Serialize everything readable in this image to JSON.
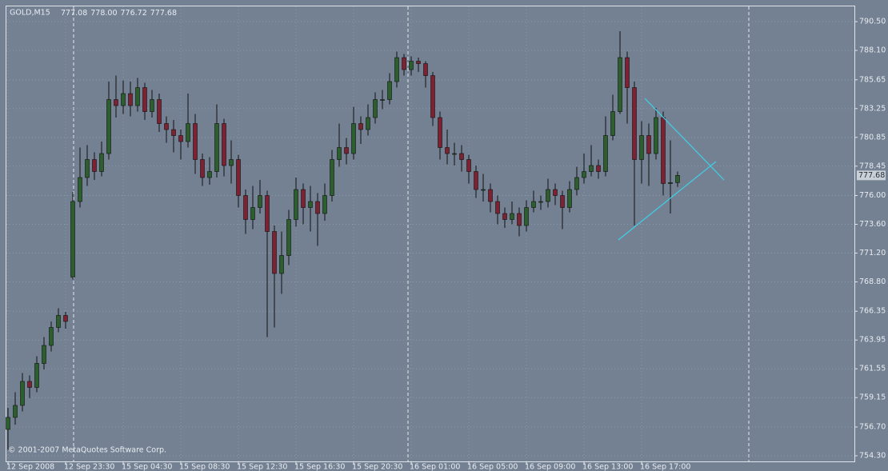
{
  "chart_data": {
    "type": "candlestick",
    "symbol": "GOLD,M15",
    "last_bar_labels": [
      "777.08",
      "778.00",
      "776.72",
      "777.68"
    ],
    "copyright": "© 2001-2007 MetaQuotes Software Corp.",
    "categories": [
      "12 Sep 2008",
      null,
      null,
      null,
      null,
      null,
      null,
      null,
      "12 Sep 23:30",
      null,
      null,
      null,
      null,
      null,
      null,
      null,
      "15 Sep 04:30",
      null,
      null,
      null,
      null,
      null,
      null,
      null,
      "15 Sep 08:30",
      null,
      null,
      null,
      null,
      null,
      null,
      null,
      "15 Sep 12:30",
      null,
      null,
      null,
      null,
      null,
      null,
      null,
      "15 Sep 16:30",
      null,
      null,
      null,
      null,
      null,
      null,
      null,
      "15 Sep 20:30",
      null,
      null,
      null,
      null,
      null,
      null,
      null,
      "16 Sep 01:00",
      null,
      null,
      null,
      null,
      null,
      null,
      null,
      "16 Sep 05:00",
      null,
      null,
      null,
      null,
      null,
      null,
      null,
      "16 Sep 09:00",
      null,
      null,
      null,
      null,
      null,
      null,
      null,
      "16 Sep 13:00",
      null,
      null,
      null,
      null,
      null,
      null,
      null,
      "16 Sep 17:00",
      null,
      null,
      null,
      null,
      null
    ],
    "open": [
      756.5,
      757.5,
      758.5,
      760.5,
      760.0,
      762.0,
      763.5,
      765.0,
      766.0,
      769.2,
      775.5,
      777.5,
      779.0,
      778.0,
      779.5,
      784.0,
      783.5,
      784.5,
      783.5,
      785.0,
      783.0,
      784.0,
      782.0,
      781.5,
      781.0,
      780.5,
      782.0,
      779.0,
      777.5,
      778.0,
      782.0,
      778.5,
      779.0,
      776.0,
      774.0,
      775.0,
      776.0,
      773.0,
      769.5,
      771.0,
      774.0,
      776.5,
      775.0,
      775.5,
      774.5,
      776.0,
      779.0,
      780.0,
      779.5,
      782.0,
      781.5,
      782.5,
      784.0,
      784.0,
      785.5,
      787.5,
      786.5,
      787.2,
      787.0,
      786.0,
      782.5,
      780.0,
      779.5,
      779.5,
      779.0,
      778.0,
      776.5,
      776.5,
      775.5,
      774.5,
      774.0,
      774.5,
      773.5,
      775.0,
      775.5,
      775.5,
      776.5,
      776.0,
      775.0,
      776.5,
      777.5,
      778.0,
      778.5,
      778.0,
      781.0,
      783.0,
      787.5,
      785.0,
      779.0,
      781.0,
      779.5,
      782.5,
      777.0,
      777.08
    ],
    "high": [
      758.3,
      759.6,
      761.2,
      761.0,
      762.6,
      764.2,
      765.5,
      766.6,
      766.3,
      776.3,
      780.0,
      780.2,
      779.6,
      780.5,
      785.5,
      786.0,
      785.6,
      785.5,
      785.8,
      785.4,
      784.8,
      784.5,
      782.6,
      782.3,
      781.5,
      784.5,
      782.8,
      779.5,
      779.2,
      783.6,
      782.4,
      780.6,
      779.4,
      776.5,
      776.8,
      777.3,
      776.4,
      773.5,
      773.0,
      774.8,
      777.5,
      777.0,
      776.8,
      776.2,
      777.0,
      779.8,
      782.0,
      780.8,
      783.4,
      782.6,
      783.6,
      784.6,
      784.8,
      786.2,
      788.0,
      787.8,
      787.6,
      787.5,
      787.2,
      786.3,
      783.0,
      781.5,
      780.4,
      780.2,
      779.4,
      778.5,
      777.8,
      777.0,
      776.0,
      775.0,
      775.5,
      775.0,
      775.6,
      776.4,
      776.0,
      777.4,
      777.0,
      776.4,
      777.2,
      778.4,
      779.5,
      780.2,
      779.0,
      782.6,
      784.4,
      789.7,
      788.0,
      785.5,
      782.2,
      782.0,
      783.3,
      783.0,
      780.6,
      778.0
    ],
    "low": [
      754.8,
      756.9,
      758.0,
      759.1,
      759.6,
      761.5,
      763.0,
      764.6,
      764.9,
      769.0,
      775.0,
      776.8,
      777.3,
      777.6,
      779.0,
      782.5,
      782.8,
      782.6,
      783.0,
      782.3,
      782.5,
      781.3,
      780.4,
      779.6,
      779.0,
      780.0,
      777.8,
      776.8,
      776.9,
      777.5,
      777.6,
      777.0,
      775.0,
      772.8,
      773.2,
      774.5,
      764.2,
      765.0,
      767.8,
      770.2,
      773.4,
      773.6,
      773.0,
      771.8,
      773.9,
      775.5,
      778.4,
      778.6,
      779.0,
      780.3,
      781.0,
      782.0,
      783.2,
      783.6,
      785.0,
      786.0,
      786.0,
      786.3,
      785.0,
      781.8,
      779.0,
      778.6,
      778.5,
      778.0,
      777.0,
      775.8,
      775.5,
      774.6,
      773.6,
      773.3,
      773.6,
      772.6,
      773.0,
      774.6,
      774.8,
      775.0,
      775.2,
      773.2,
      774.6,
      776.0,
      777.0,
      777.6,
      777.4,
      777.6,
      780.6,
      782.8,
      782.0,
      773.5,
      777.0,
      776.8,
      779.0,
      776.0,
      774.5,
      776.72
    ],
    "close": [
      757.5,
      758.5,
      760.5,
      760.0,
      762.0,
      763.5,
      765.0,
      766.0,
      765.5,
      775.5,
      777.5,
      779.0,
      778.0,
      779.5,
      784.0,
      783.5,
      784.5,
      783.5,
      785.0,
      783.0,
      784.0,
      782.0,
      781.5,
      781.0,
      780.5,
      782.0,
      779.0,
      777.5,
      778.0,
      782.0,
      778.5,
      779.0,
      776.0,
      774.0,
      775.0,
      776.0,
      773.0,
      769.5,
      771.0,
      774.0,
      776.5,
      775.0,
      775.5,
      774.5,
      776.0,
      779.0,
      780.0,
      779.5,
      782.0,
      781.5,
      782.5,
      784.0,
      784.0,
      785.5,
      787.5,
      786.5,
      787.2,
      787.0,
      786.0,
      782.5,
      780.0,
      779.5,
      779.5,
      779.0,
      778.0,
      776.5,
      776.5,
      775.5,
      774.5,
      774.0,
      774.5,
      773.5,
      775.0,
      775.5,
      775.5,
      776.5,
      776.0,
      775.0,
      776.5,
      777.5,
      778.0,
      778.5,
      778.0,
      781.0,
      783.0,
      787.5,
      785.0,
      779.0,
      781.0,
      779.5,
      782.5,
      777.0,
      777.08,
      777.68
    ],
    "up_color": "#2d5e2d",
    "down_color": "#7d2232",
    "ylim": [
      753.83,
      791.77
    ],
    "yticks": [
      {
        "value": 790.5,
        "label": "790.50"
      },
      {
        "value": 788.1,
        "label": "788.10"
      },
      {
        "value": 785.65,
        "label": "785.65"
      },
      {
        "value": 783.25,
        "label": "783.25"
      },
      {
        "value": 780.85,
        "label": "780.85"
      },
      {
        "value": 778.45,
        "label": "778.45"
      },
      {
        "value": 776,
        "label": "776.00"
      },
      {
        "value": 773.6,
        "label": "773.60"
      },
      {
        "value": 771.2,
        "label": "771.20"
      },
      {
        "value": 768.8,
        "label": "768.80"
      },
      {
        "value": 766.35,
        "label": "766.35"
      },
      {
        "value": 763.95,
        "label": "763.95"
      },
      {
        "value": 761.55,
        "label": "761.55"
      },
      {
        "value": 759.15,
        "label": "759.15"
      },
      {
        "value": 756.7,
        "label": "756.70"
      },
      {
        "value": 754.3,
        "label": "754.30"
      }
    ],
    "grid": true
  }
}
